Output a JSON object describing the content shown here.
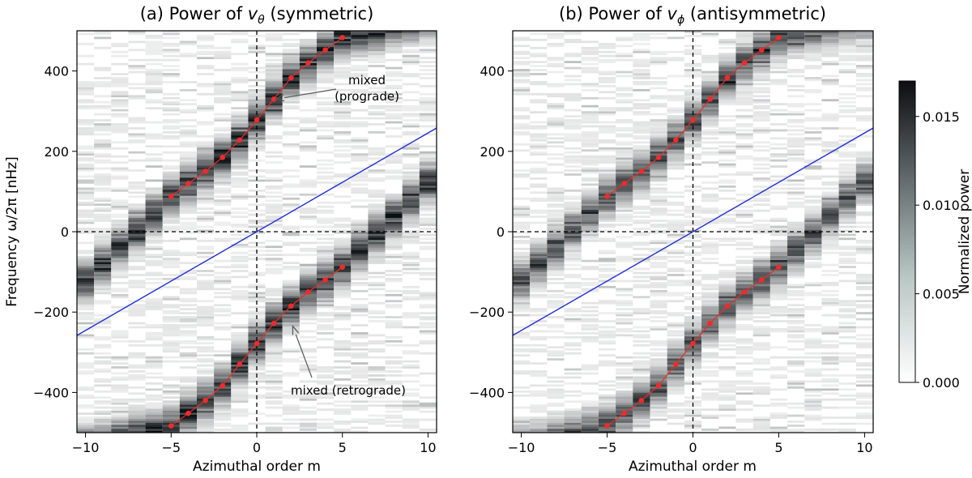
{
  "chart_data": [
    {
      "type": "heatmap",
      "title": "(a) Power of vθ (symmetric)",
      "title_prefix": "(a) Power of ",
      "title_var": "v",
      "title_sub": "θ",
      "title_suffix": " (symmetric)",
      "xlabel": "Azimuthal order m",
      "ylabel": "Frequency  ω/2π  [nHz]",
      "xlim": [
        -10.5,
        10.5
      ],
      "ylim": [
        -500,
        500
      ],
      "xticks": [
        -10,
        -5,
        0,
        5,
        10
      ],
      "yticks": [
        -400,
        -200,
        0,
        200,
        400
      ],
      "ytick_labels": [
        "−400",
        "−200",
        "0",
        "200",
        "400"
      ],
      "xtick_labels": [
        "−10",
        "−5",
        "0",
        "5",
        "10"
      ],
      "colormap": "white-to-black (gray)",
      "guide_lines": {
        "zero_axes": "dashed black",
        "rossby_reference": {
          "color": "#1f2fd6",
          "points": [
            [
              -10.5,
              -258
            ],
            [
              10.5,
              258
            ]
          ]
        }
      },
      "series": [
        {
          "name": "prograde branch",
          "color": "#ee2b2b",
          "m": [
            -5,
            -4,
            -3,
            -2,
            -1,
            0,
            1,
            2,
            3,
            4,
            5
          ],
          "frequency": [
            88,
            120,
            150,
            185,
            228,
            278,
            330,
            383,
            420,
            452,
            483
          ]
        },
        {
          "name": "retrograde branch",
          "color": "#ee2b2b",
          "m": [
            -5,
            -4,
            -3,
            -2,
            -1,
            0,
            1,
            2,
            3,
            4,
            5
          ],
          "frequency": [
            -483,
            -452,
            -420,
            -383,
            -330,
            -278,
            -228,
            -185,
            -150,
            -120,
            -88
          ]
        }
      ],
      "annotations": [
        {
          "text_lines": [
            "mixed",
            "(prograde)"
          ],
          "points_to": {
            "m": 1.1,
            "frequency": 330
          }
        },
        {
          "text_lines": [
            "mixed (retrograde)"
          ],
          "points_to": {
            "m": 2.1,
            "frequency": -235
          }
        }
      ]
    },
    {
      "type": "heatmap",
      "title": "(b) Power of vϕ (antisymmetric)",
      "title_prefix": "(b) Power of ",
      "title_var": "v",
      "title_sub": "ϕ",
      "title_suffix": " (antisymmetric)",
      "xlabel": "Azimuthal order m",
      "xlim": [
        -10.5,
        10.5
      ],
      "ylim": [
        -500,
        500
      ],
      "xticks": [
        -10,
        -5,
        0,
        5,
        10
      ],
      "yticks": [
        -400,
        -200,
        0,
        200,
        400
      ],
      "ytick_labels": [
        "−400",
        "−200",
        "0",
        "200",
        "400"
      ],
      "xtick_labels": [
        "−10",
        "−5",
        "0",
        "5",
        "10"
      ],
      "colormap": "white-to-black (gray)",
      "guide_lines": {
        "zero_axes": "dashed black",
        "rossby_reference": {
          "color": "#1f2fd6",
          "points": [
            [
              -10.5,
              -258
            ],
            [
              10.5,
              258
            ]
          ]
        }
      },
      "series": [
        {
          "name": "prograde branch",
          "color": "#ee2b2b",
          "m": [
            -5,
            -4,
            -3,
            -2,
            -1,
            0,
            1,
            2,
            3,
            4,
            5
          ],
          "frequency": [
            88,
            120,
            150,
            185,
            228,
            278,
            330,
            383,
            420,
            452,
            483
          ]
        },
        {
          "name": "retrograde branch",
          "color": "#ee2b2b",
          "m": [
            -5,
            -4,
            -3,
            -2,
            -1,
            0,
            1,
            2,
            3,
            4,
            5
          ],
          "frequency": [
            -483,
            -452,
            -420,
            -383,
            -330,
            -278,
            -228,
            -185,
            -150,
            -120,
            -88
          ]
        }
      ]
    }
  ],
  "colorbar": {
    "label": "Normalized power",
    "min": 0.0,
    "max": 0.017,
    "ticks": [
      0.0,
      0.005,
      0.01,
      0.015
    ],
    "tick_labels": [
      "0.000",
      "0.005",
      "0.010",
      "0.015"
    ]
  }
}
